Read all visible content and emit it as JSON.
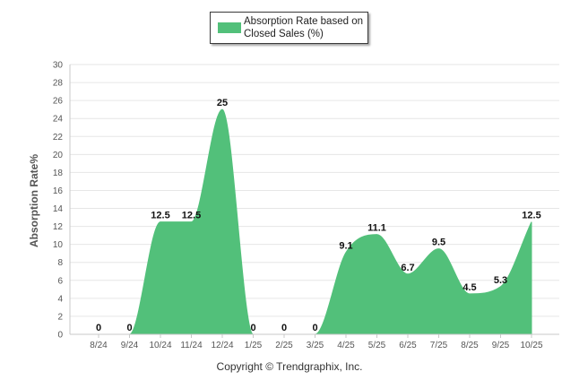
{
  "chart_data": {
    "type": "area",
    "categories": [
      "8/24",
      "9/24",
      "10/24",
      "11/24",
      "12/24",
      "1/25",
      "2/25",
      "3/25",
      "4/25",
      "5/25",
      "6/25",
      "7/25",
      "8/25",
      "9/25",
      "10/25"
    ],
    "series": [
      {
        "name": "Absorption Rate based on Closed Sales (%)",
        "values": [
          0,
          0,
          12.5,
          12.5,
          25,
          0,
          0,
          0,
          9.1,
          11.1,
          6.7,
          9.5,
          4.5,
          5.3,
          12.5
        ]
      }
    ],
    "data_labels": [
      "0",
      "0",
      "12.5",
      "12.5",
      "25",
      "0",
      "0",
      "0",
      "9.1",
      "11.1",
      "6.7",
      "9.5",
      "4.5",
      "5.3",
      "12.5"
    ],
    "ylabel": "Absorption Rate%",
    "ylim": [
      0,
      30
    ],
    "yticks": [
      "0",
      "2",
      "4",
      "6",
      "8",
      "10",
      "12",
      "14",
      "16",
      "18",
      "20",
      "22",
      "24",
      "26",
      "28",
      "30"
    ],
    "grid": true,
    "legend_position": "top-center",
    "color": "#52c07a"
  },
  "legend": {
    "label": "Absorption Rate based on Closed Sales (%)"
  },
  "credit": "Copyright © Trendgraphix, Inc."
}
